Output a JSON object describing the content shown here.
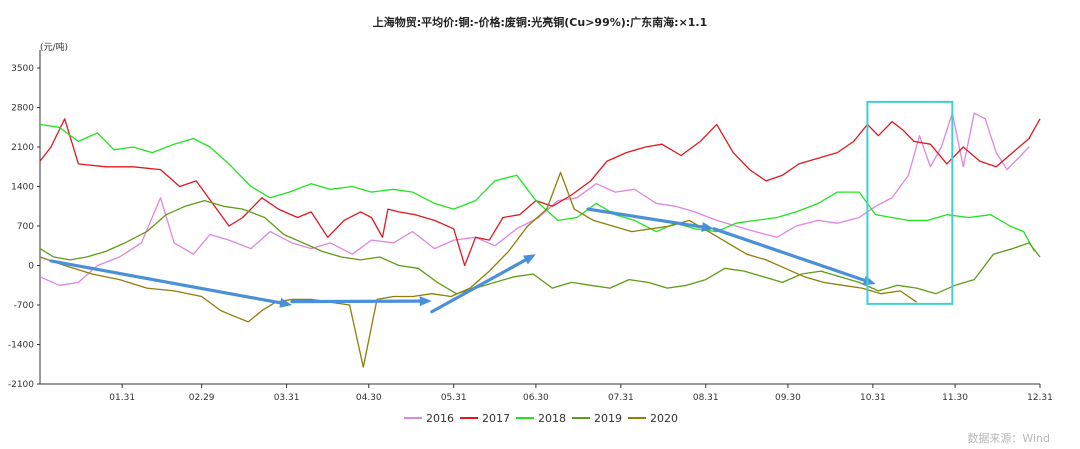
{
  "chart_data": {
    "type": "line",
    "title": "上海物贸:平均价:铜:-价格:废铜:光亮铜(Cu>99%):广东南海:×1.1",
    "ylabel": "(元/吨)",
    "xlabel": "",
    "ylim": [
      -2100,
      3800
    ],
    "yticks": [
      "3500",
      "2800",
      "2100",
      "1400",
      "700",
      "0",
      "-700",
      "-1400",
      "-2100"
    ],
    "ytick_values": [
      3500,
      2800,
      2100,
      1400,
      700,
      0,
      -700,
      -1400,
      -2100
    ],
    "xticks": [
      "01.31",
      "02.29",
      "03.31",
      "04.30",
      "05.31",
      "06.30",
      "07.31",
      "08.31",
      "09.30",
      "10.31",
      "11.30",
      "12.31"
    ],
    "xtick_days": [
      31,
      60,
      91,
      121,
      152,
      182,
      213,
      244,
      274,
      305,
      335,
      366
    ],
    "xlim": [
      1,
      366
    ],
    "grid": false,
    "legend_position": "bottom",
    "source": "数据来源：Wind",
    "series": [
      {
        "name": "2016",
        "color": "#df86df",
        "points": [
          [
            1,
            -200
          ],
          [
            8,
            -350
          ],
          [
            15,
            -300
          ],
          [
            22,
            0
          ],
          [
            30,
            150
          ],
          [
            38,
            400
          ],
          [
            45,
            1200
          ],
          [
            50,
            400
          ],
          [
            57,
            200
          ],
          [
            63,
            550
          ],
          [
            70,
            450
          ],
          [
            78,
            300
          ],
          [
            85,
            600
          ],
          [
            93,
            400
          ],
          [
            100,
            300
          ],
          [
            107,
            400
          ],
          [
            115,
            200
          ],
          [
            122,
            450
          ],
          [
            130,
            400
          ],
          [
            137,
            600
          ],
          [
            145,
            300
          ],
          [
            152,
            450
          ],
          [
            160,
            500
          ],
          [
            167,
            350
          ],
          [
            175,
            650
          ],
          [
            183,
            850
          ],
          [
            190,
            1150
          ],
          [
            197,
            1200
          ],
          [
            204,
            1450
          ],
          [
            211,
            1300
          ],
          [
            218,
            1350
          ],
          [
            226,
            1100
          ],
          [
            233,
            1050
          ],
          [
            240,
            950
          ],
          [
            248,
            800
          ],
          [
            255,
            700
          ],
          [
            262,
            600
          ],
          [
            270,
            500
          ],
          [
            277,
            700
          ],
          [
            285,
            800
          ],
          [
            292,
            750
          ],
          [
            300,
            850
          ],
          [
            306,
            1050
          ],
          [
            312,
            1200
          ],
          [
            318,
            1600
          ],
          [
            322,
            2300
          ],
          [
            326,
            1750
          ],
          [
            330,
            2100
          ],
          [
            334,
            2700
          ],
          [
            338,
            1750
          ],
          [
            342,
            2700
          ],
          [
            346,
            2600
          ],
          [
            350,
            2000
          ],
          [
            354,
            1700
          ],
          [
            358,
            1900
          ],
          [
            362,
            2100
          ]
        ]
      },
      {
        "name": "2017",
        "color": "#e0181f",
        "points": [
          [
            1,
            1850
          ],
          [
            5,
            2100
          ],
          [
            10,
            2600
          ],
          [
            15,
            1800
          ],
          [
            25,
            1750
          ],
          [
            35,
            1750
          ],
          [
            45,
            1700
          ],
          [
            52,
            1400
          ],
          [
            58,
            1500
          ],
          [
            64,
            1100
          ],
          [
            70,
            700
          ],
          [
            75,
            850
          ],
          [
            82,
            1200
          ],
          [
            88,
            1000
          ],
          [
            95,
            850
          ],
          [
            100,
            950
          ],
          [
            106,
            500
          ],
          [
            112,
            800
          ],
          [
            118,
            950
          ],
          [
            122,
            850
          ],
          [
            126,
            500
          ],
          [
            128,
            1000
          ],
          [
            132,
            950
          ],
          [
            138,
            900
          ],
          [
            145,
            800
          ],
          [
            152,
            650
          ],
          [
            156,
            0
          ],
          [
            160,
            500
          ],
          [
            165,
            450
          ],
          [
            170,
            850
          ],
          [
            176,
            900
          ],
          [
            182,
            1150
          ],
          [
            188,
            1050
          ],
          [
            195,
            1250
          ],
          [
            202,
            1500
          ],
          [
            208,
            1850
          ],
          [
            215,
            2000
          ],
          [
            222,
            2100
          ],
          [
            228,
            2150
          ],
          [
            235,
            1950
          ],
          [
            242,
            2200
          ],
          [
            248,
            2500
          ],
          [
            254,
            2000
          ],
          [
            260,
            1700
          ],
          [
            266,
            1500
          ],
          [
            272,
            1600
          ],
          [
            278,
            1800
          ],
          [
            285,
            1900
          ],
          [
            292,
            2000
          ],
          [
            298,
            2200
          ],
          [
            303,
            2500
          ],
          [
            307,
            2300
          ],
          [
            312,
            2550
          ],
          [
            316,
            2400
          ],
          [
            320,
            2200
          ],
          [
            326,
            2150
          ],
          [
            332,
            1800
          ],
          [
            338,
            2100
          ],
          [
            344,
            1850
          ],
          [
            350,
            1750
          ],
          [
            356,
            2000
          ],
          [
            362,
            2250
          ],
          [
            366,
            2600
          ]
        ]
      },
      {
        "name": "2018",
        "color": "#21e321",
        "points": [
          [
            1,
            2500
          ],
          [
            8,
            2450
          ],
          [
            15,
            2200
          ],
          [
            22,
            2350
          ],
          [
            28,
            2050
          ],
          [
            35,
            2100
          ],
          [
            42,
            2000
          ],
          [
            50,
            2150
          ],
          [
            57,
            2250
          ],
          [
            63,
            2100
          ],
          [
            70,
            1800
          ],
          [
            78,
            1400
          ],
          [
            85,
            1200
          ],
          [
            92,
            1300
          ],
          [
            100,
            1450
          ],
          [
            107,
            1350
          ],
          [
            115,
            1400
          ],
          [
            122,
            1300
          ],
          [
            130,
            1350
          ],
          [
            137,
            1300
          ],
          [
            145,
            1100
          ],
          [
            152,
            1000
          ],
          [
            160,
            1150
          ],
          [
            167,
            1500
          ],
          [
            175,
            1600
          ],
          [
            182,
            1150
          ],
          [
            190,
            800
          ],
          [
            197,
            850
          ],
          [
            204,
            1100
          ],
          [
            211,
            900
          ],
          [
            218,
            800
          ],
          [
            226,
            600
          ],
          [
            233,
            750
          ],
          [
            240,
            650
          ],
          [
            248,
            600
          ],
          [
            255,
            750
          ],
          [
            262,
            800
          ],
          [
            270,
            850
          ],
          [
            277,
            950
          ],
          [
            285,
            1100
          ],
          [
            292,
            1300
          ],
          [
            300,
            1300
          ],
          [
            306,
            900
          ],
          [
            312,
            850
          ],
          [
            318,
            800
          ],
          [
            325,
            800
          ],
          [
            332,
            900
          ],
          [
            340,
            850
          ],
          [
            348,
            900
          ],
          [
            355,
            700
          ],
          [
            360,
            600
          ],
          [
            364,
            250
          ]
        ]
      },
      {
        "name": "2019",
        "color": "#5e9c16",
        "points": [
          [
            1,
            300
          ],
          [
            6,
            150
          ],
          [
            12,
            100
          ],
          [
            18,
            150
          ],
          [
            25,
            250
          ],
          [
            32,
            400
          ],
          [
            40,
            600
          ],
          [
            47,
            900
          ],
          [
            54,
            1050
          ],
          [
            61,
            1150
          ],
          [
            68,
            1050
          ],
          [
            75,
            1000
          ],
          [
            83,
            850
          ],
          [
            90,
            550
          ],
          [
            97,
            400
          ],
          [
            104,
            250
          ],
          [
            111,
            150
          ],
          [
            118,
            100
          ],
          [
            125,
            150
          ],
          [
            132,
            0
          ],
          [
            139,
            -50
          ],
          [
            146,
            -300
          ],
          [
            153,
            -500
          ],
          [
            160,
            -400
          ],
          [
            167,
            -300
          ],
          [
            174,
            -200
          ],
          [
            181,
            -150
          ],
          [
            188,
            -400
          ],
          [
            195,
            -300
          ],
          [
            202,
            -350
          ],
          [
            209,
            -400
          ],
          [
            216,
            -250
          ],
          [
            223,
            -300
          ],
          [
            230,
            -400
          ],
          [
            237,
            -350
          ],
          [
            244,
            -250
          ],
          [
            251,
            -50
          ],
          [
            258,
            -100
          ],
          [
            265,
            -200
          ],
          [
            272,
            -300
          ],
          [
            279,
            -150
          ],
          [
            286,
            -100
          ],
          [
            293,
            -200
          ],
          [
            300,
            -300
          ],
          [
            307,
            -450
          ],
          [
            314,
            -350
          ],
          [
            321,
            -400
          ],
          [
            328,
            -500
          ],
          [
            335,
            -350
          ],
          [
            342,
            -250
          ],
          [
            349,
            200
          ],
          [
            356,
            300
          ],
          [
            362,
            400
          ],
          [
            366,
            150
          ]
        ]
      },
      {
        "name": "2020",
        "color": "#8f7e08",
        "points": [
          [
            1,
            150
          ],
          [
            10,
            0
          ],
          [
            20,
            -150
          ],
          [
            30,
            -250
          ],
          [
            40,
            -400
          ],
          [
            50,
            -450
          ],
          [
            60,
            -550
          ],
          [
            67,
            -800
          ],
          [
            72,
            -900
          ],
          [
            77,
            -1000
          ],
          [
            82,
            -800
          ],
          [
            87,
            -650
          ],
          [
            93,
            -600
          ],
          [
            100,
            -600
          ],
          [
            107,
            -650
          ],
          [
            114,
            -700
          ],
          [
            119,
            -1800
          ],
          [
            124,
            -600
          ],
          [
            130,
            -550
          ],
          [
            137,
            -550
          ],
          [
            144,
            -500
          ],
          [
            151,
            -550
          ],
          [
            158,
            -400
          ],
          [
            165,
            -100
          ],
          [
            172,
            250
          ],
          [
            179,
            700
          ],
          [
            186,
            1000
          ],
          [
            191,
            1650
          ],
          [
            196,
            1000
          ],
          [
            203,
            800
          ],
          [
            210,
            700
          ],
          [
            217,
            600
          ],
          [
            224,
            650
          ],
          [
            231,
            700
          ],
          [
            238,
            800
          ],
          [
            245,
            600
          ],
          [
            252,
            400
          ],
          [
            259,
            200
          ],
          [
            266,
            100
          ],
          [
            273,
            -50
          ],
          [
            280,
            -200
          ],
          [
            287,
            -300
          ],
          [
            294,
            -350
          ],
          [
            301,
            -400
          ],
          [
            308,
            -500
          ],
          [
            315,
            -450
          ],
          [
            321,
            -650
          ]
        ]
      }
    ],
    "annotations": [
      {
        "type": "arrow",
        "color": "#4a90d9",
        "from": [
          5,
          80
        ],
        "to": [
          93,
          -700
        ]
      },
      {
        "type": "arrow",
        "color": "#4a90d9",
        "from": [
          93,
          -640
        ],
        "to": [
          144,
          -630
        ]
      },
      {
        "type": "arrow",
        "color": "#4a90d9",
        "from": [
          144,
          -820
        ],
        "to": [
          182,
          200
        ]
      },
      {
        "type": "arrow",
        "color": "#4a90d9",
        "from": [
          201,
          1000
        ],
        "to": [
          247,
          650
        ]
      },
      {
        "type": "arrow",
        "color": "#4a90d9",
        "from": [
          247,
          650
        ],
        "to": [
          306,
          -330
        ]
      },
      {
        "type": "box",
        "color": "#3fd0d4",
        "from": [
          303,
          2900
        ],
        "to": [
          334,
          -680
        ]
      }
    ]
  }
}
